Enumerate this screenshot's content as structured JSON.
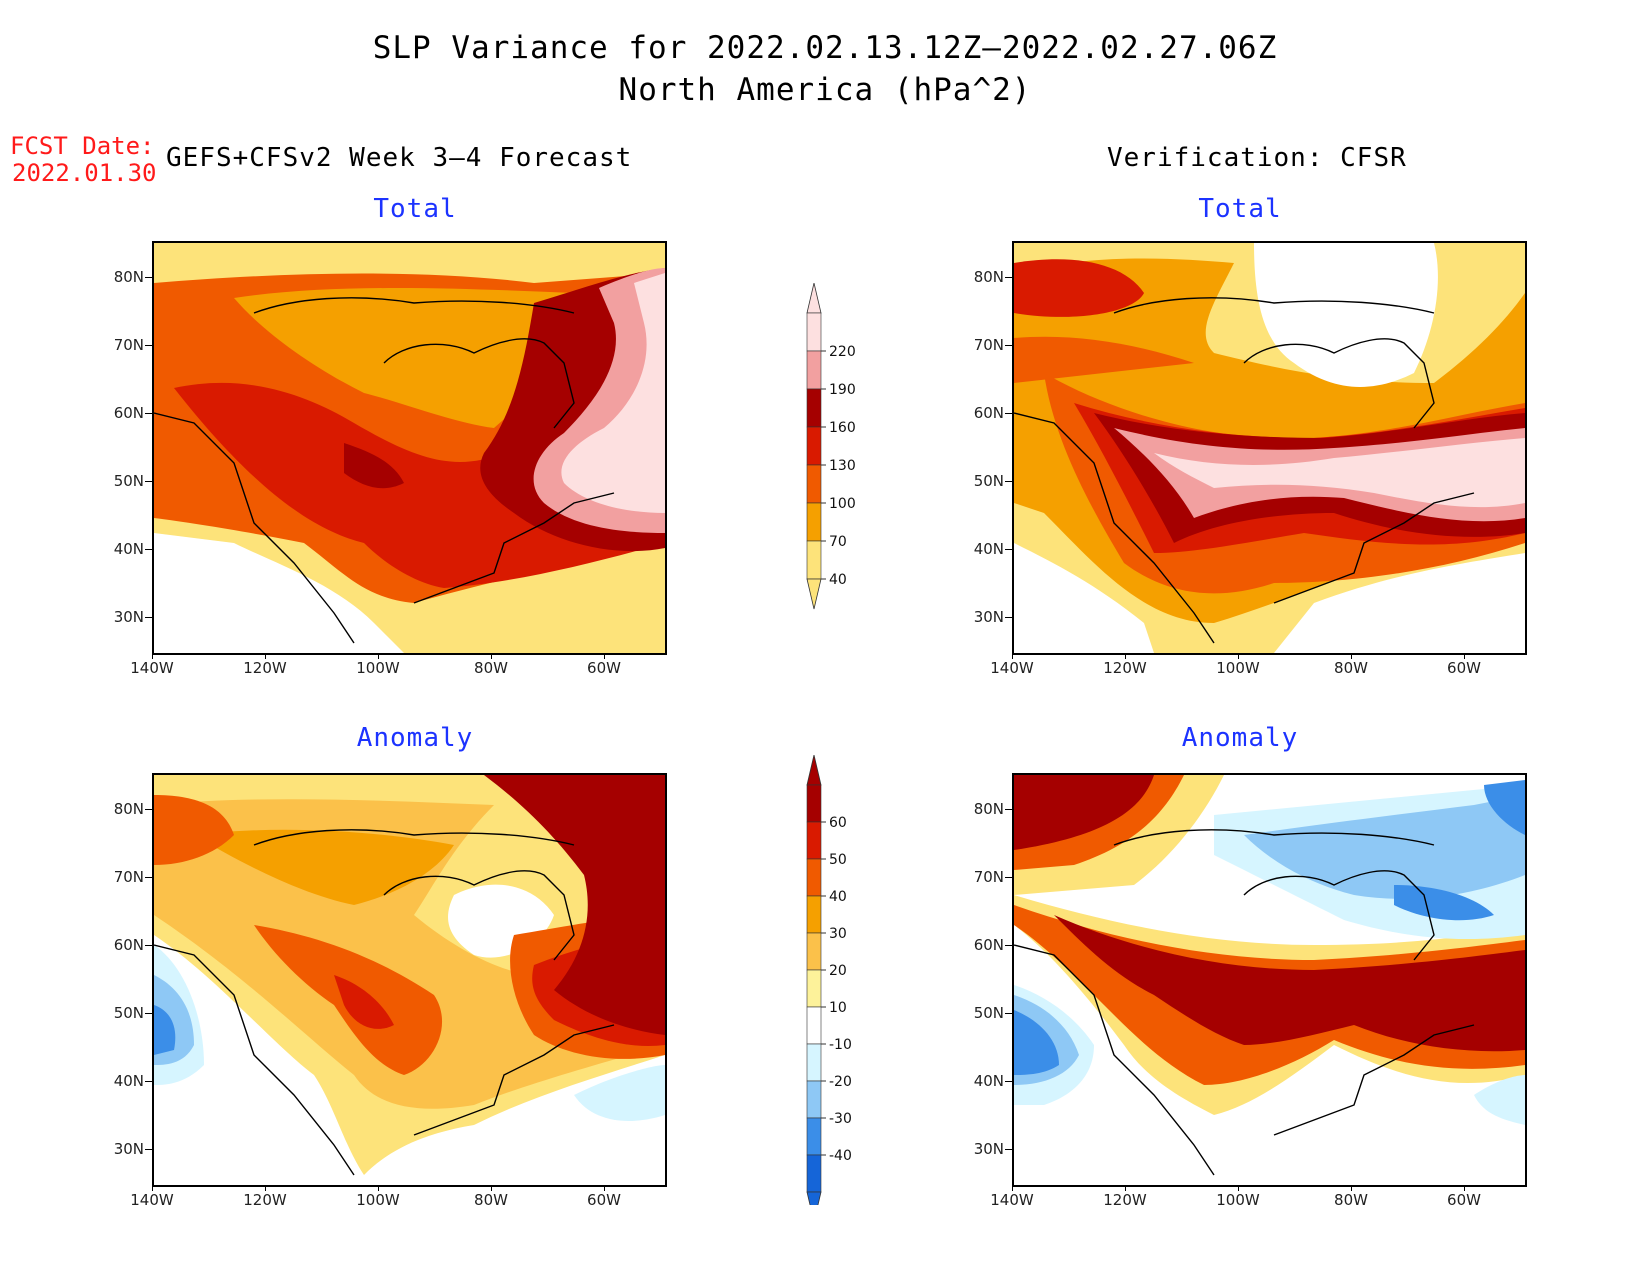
{
  "header": {
    "title_line1": "SLP Variance for 2022.02.13.12Z–2022.02.27.06Z",
    "title_line2": "North America (hPa^2)",
    "fcst_label": "FCST Date:",
    "fcst_date": "2022.01.30",
    "left_heading": "GEFS+CFSv2 Week 3–4 Forecast",
    "right_heading": "Verification: CFSR"
  },
  "panels": [
    {
      "title": "Total"
    },
    {
      "title": "Total"
    },
    {
      "title": "Anomaly"
    },
    {
      "title": "Anomaly"
    }
  ],
  "axes": {
    "lat_labels": [
      "80N",
      "70N",
      "60N",
      "50N",
      "40N",
      "30N"
    ],
    "lon_labels": [
      "140W",
      "120W",
      "100W",
      "80W",
      "60W"
    ]
  },
  "colorbar_total": {
    "levels": [
      "220",
      "190",
      "160",
      "130",
      "100",
      "70",
      "40"
    ],
    "colors": [
      "#fde0e0",
      "#f2a0a0",
      "#a50000",
      "#d91a00",
      "#f05a00",
      "#f5a000",
      "#fde37a"
    ]
  },
  "colorbar_anomaly": {
    "levels": [
      "60",
      "50",
      "40",
      "30",
      "20",
      "10",
      "-10",
      "-20",
      "-30",
      "-40"
    ],
    "colors": [
      "#a50000",
      "#d91a00",
      "#f05a00",
      "#f5a000",
      "#fbc14a",
      "#fdf29a",
      "#ffffff",
      "#d6f5ff",
      "#8ec8f5",
      "#3b8ee8",
      "#1565d8"
    ]
  },
  "palette": {
    "white": "#ffffff",
    "yellow": "#fde37a",
    "light_orange": "#fbc14a",
    "orange": "#f5a000",
    "dark_orange": "#f05a00",
    "red": "#d91a00",
    "dark_red": "#a50000",
    "pink": "#f2a0a0",
    "light_pink": "#fde0e0",
    "light_blue": "#d6f5ff",
    "blue": "#8ec8f5",
    "mid_blue": "#3b8ee8",
    "deep_blue": "#1565d8",
    "title_blue": "#1c33ff",
    "fcst_red": "#ff1a1a"
  }
}
